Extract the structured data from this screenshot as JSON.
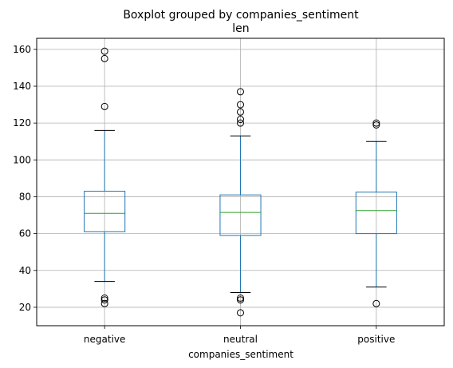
{
  "chart_data": {
    "type": "boxplot",
    "title": "Boxplot grouped by companies_sentiment",
    "subtitle": "len",
    "xlabel": "companies_sentiment",
    "ylabel": "",
    "ylim": [
      10,
      166
    ],
    "yticks": [
      20,
      40,
      60,
      80,
      100,
      120,
      140,
      160
    ],
    "grid": true,
    "colors": {
      "box": "#1f77b4",
      "median": "#2ca02c",
      "whisker_cap": "#000000",
      "flier": "#000000",
      "grid": "#b0b0b0"
    },
    "categories": [
      "negative",
      "neutral",
      "positive"
    ],
    "boxes": [
      {
        "category": "negative",
        "whisker_low": 34,
        "q1": 61,
        "median": 71,
        "q3": 83,
        "whisker_high": 116,
        "outliers": [
          22,
          24,
          25,
          129,
          155,
          159
        ]
      },
      {
        "category": "neutral",
        "whisker_low": 28,
        "q1": 59,
        "median": 71.5,
        "q3": 81,
        "whisker_high": 113,
        "outliers": [
          17,
          24,
          25,
          120,
          122,
          126,
          130,
          137
        ]
      },
      {
        "category": "positive",
        "whisker_low": 31,
        "q1": 60,
        "median": 72.5,
        "q3": 82.5,
        "whisker_high": 110,
        "outliers": [
          22,
          119,
          120
        ]
      }
    ]
  }
}
